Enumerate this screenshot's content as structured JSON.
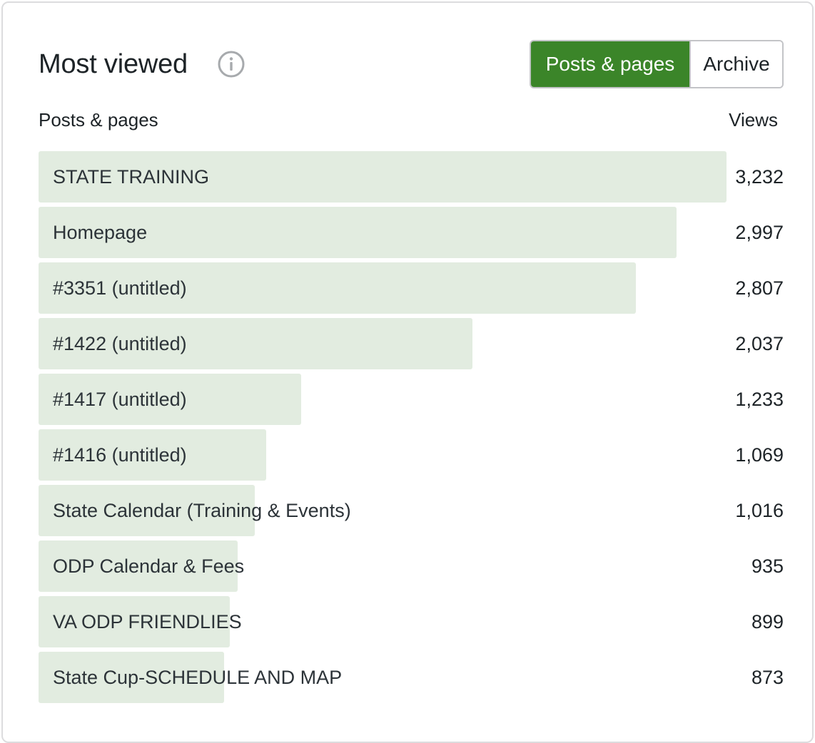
{
  "header": {
    "title": "Most viewed",
    "info_icon": "info-icon",
    "toggle": {
      "options": [
        "Posts & pages",
        "Archive"
      ],
      "selected": "Posts & pages",
      "accent_color": "#3b8529"
    }
  },
  "table": {
    "col_left": "Posts & pages",
    "col_right": "Views",
    "bar_color": "#e2ece0",
    "max_views": 3500,
    "rows": [
      {
        "label": "STATE TRAINING",
        "views": "3,232",
        "value": 3232
      },
      {
        "label": "Homepage",
        "views": "2,997",
        "value": 2997
      },
      {
        "label": "#3351 (untitled)",
        "views": "2,807",
        "value": 2807
      },
      {
        "label": "#1422 (untitled)",
        "views": "2,037",
        "value": 2037
      },
      {
        "label": "#1417 (untitled)",
        "views": "1,233",
        "value": 1233
      },
      {
        "label": "#1416 (untitled)",
        "views": "1,069",
        "value": 1069
      },
      {
        "label": "State Calendar (Training & Events)",
        "views": "1,016",
        "value": 1016
      },
      {
        "label": "ODP Calendar & Fees",
        "views": "935",
        "value": 935
      },
      {
        "label": "VA ODP FRIENDLIES",
        "views": "899",
        "value": 899
      },
      {
        "label": "State Cup-SCHEDULE AND MAP",
        "views": "873",
        "value": 873
      }
    ]
  }
}
